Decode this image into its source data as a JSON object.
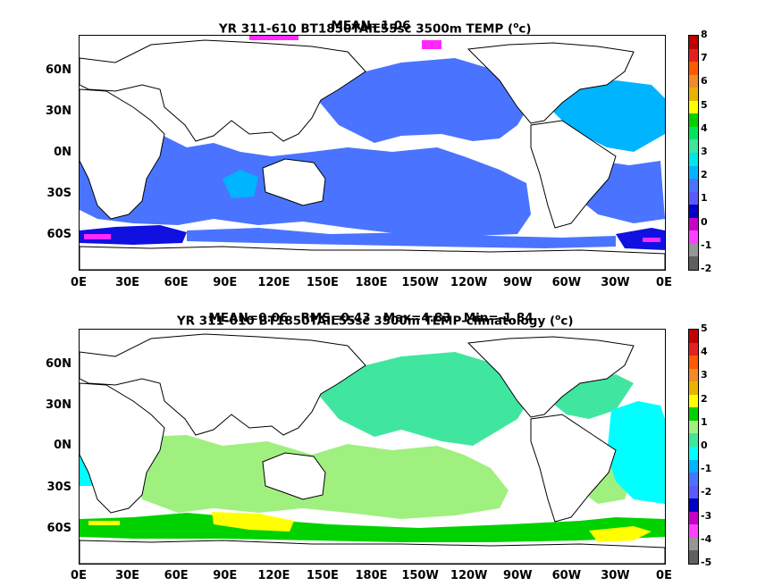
{
  "panels": [
    {
      "title_line1": "YR 311-610 BT1850TAIL55sc 3500m TEMP (",
      "title_unit": "o",
      "title_line1_end": "c)",
      "title_line2": "MEAN=1.06",
      "colorbar_ticks": [
        "8",
        "7",
        "6",
        "5",
        "4",
        "3",
        "2",
        "1",
        "0",
        "-1",
        "-2"
      ],
      "colorbar_colors": [
        "#c00000",
        "#e62020",
        "#ff5a00",
        "#f08c28",
        "#e6b400",
        "#ffff00",
        "#00d200",
        "#00e65a",
        "#40e6a0",
        "#00e6e6",
        "#00b4ff",
        "#4a74ff",
        "#5a5aff",
        "#0000c8",
        "#c800c8",
        "#ff40ff",
        "#969696",
        "#606060"
      ],
      "fills": {
        "main": "#4a74ff",
        "deep": "#1010e0",
        "light": "#00b4ff",
        "magenta": "#ff28ff",
        "extra": "#40e6a0"
      }
    },
    {
      "title_line1": "YR 311-610 BT1850TAIL55sc 3500m TEMP-climatology (",
      "title_unit": "o",
      "title_line1_end": "c)",
      "title_line2": "MEAN=0.06   RMS=0.43   Max=4.83   Min=-1.84",
      "colorbar_ticks": [
        "5",
        "4",
        "3",
        "2",
        "1",
        "0",
        "-1",
        "-2",
        "-3",
        "-4",
        "-5"
      ],
      "colorbar_colors": [
        "#c00000",
        "#e62020",
        "#ff5a00",
        "#f08c28",
        "#e6b400",
        "#ffff00",
        "#00d200",
        "#a0f080",
        "#40e6a0",
        "#00ffff",
        "#00b4ff",
        "#4a74ff",
        "#5a5aff",
        "#0000c8",
        "#c800c8",
        "#ff40ff",
        "#969696",
        "#606060"
      ],
      "fills": {
        "main": "#40e6a0",
        "light": "#a0f080",
        "green": "#00d200",
        "yellow": "#ffff00",
        "cyan": "#00ffff"
      }
    }
  ],
  "lat_labels": [
    "60N",
    "30N",
    "0N",
    "30S",
    "60S"
  ],
  "lon_labels": [
    "0E",
    "30E",
    "60E",
    "90E",
    "120E",
    "150E",
    "180E",
    "150W",
    "120W",
    "90W",
    "60W",
    "30W",
    "0E"
  ]
}
